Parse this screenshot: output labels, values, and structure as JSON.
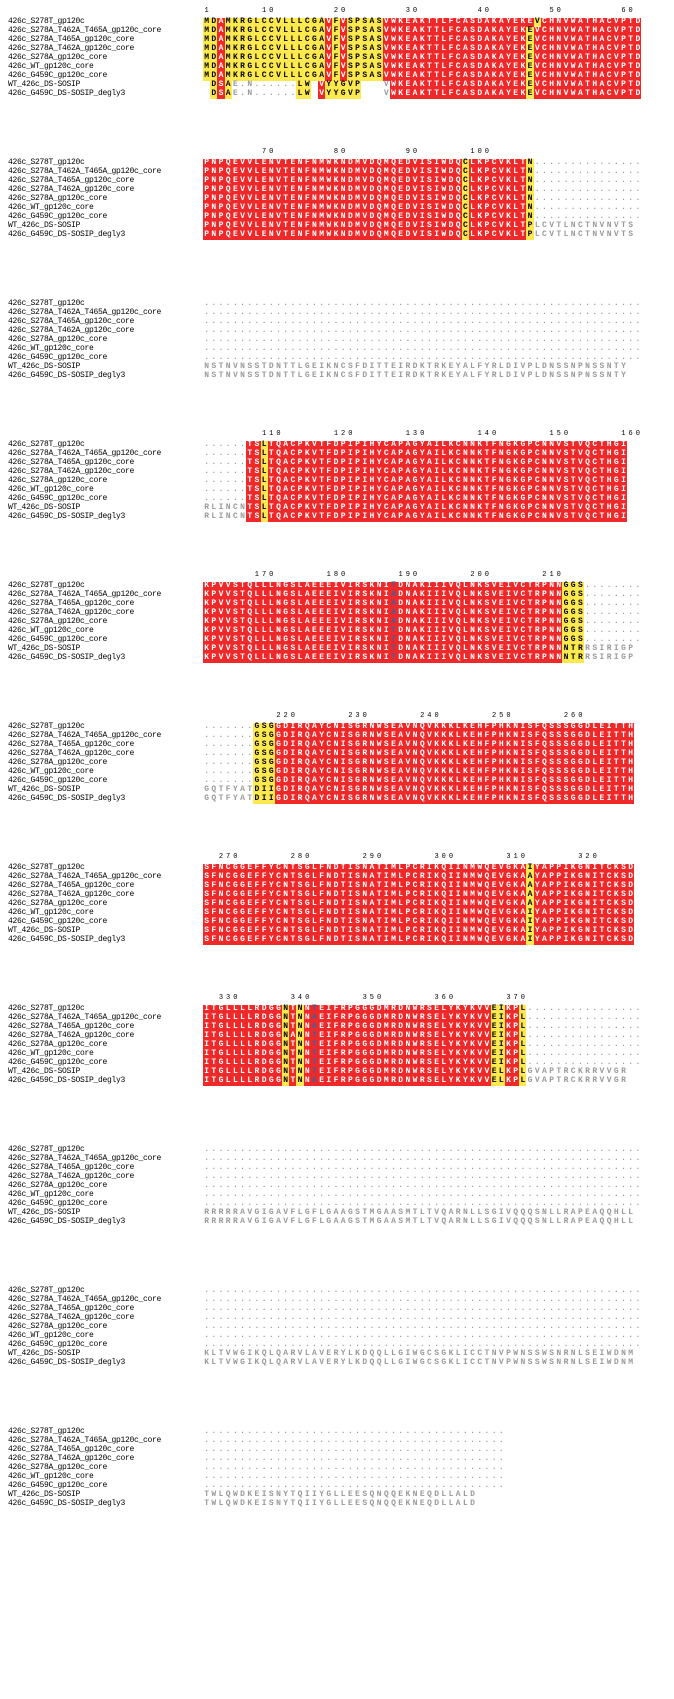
{
  "labels": [
    "426c_S278T_gp120c",
    "426c_S278A_T462A_T465A_gp120c_core",
    "426c_S278A_T465A_gp120c_core",
    "426c_S278A_T462A_gp120c_core",
    "426c_S278A_gp120c_core",
    "426c_WT_gp120c_core",
    "426c_G459C_gp120c_core",
    "WT_426c_DS-SOSIP",
    "426c_G459C_DS-SOSIP_degly3"
  ],
  "blocks": [
    {
      "ruler": [
        1,
        10,
        20,
        30,
        40,
        50,
        60
      ],
      "seqs": [
        "MDAMKRGLCCVLLLCGAVFVSPSASVWKEAKTTLFCASDAKAYEKEVCHNVWATHACVPTD",
        "MDAMKRGLCCVLLLCGAVFVSPSASVWKEAKTTLFCASDAKAYEKEVCHNVWATHACVPTD",
        "MDAMKRGLCCVLLLCGAVFVSPSASVWKEAKTTLFCASDAKAYEKEVCHNVWATHACVPTD",
        "MDAMKRGLCCVLLLCGAVFVSPSASVWKEAKTTLFCASDAKAYEKEVCHNVWATHACVPTD",
        "MDAMKRGLCCVLLLCGAVFVSPSASVWKEAKTTLFCASDAKAYEKEVCHNVWATHACVPTD",
        "MDAMKRGLCCVLLLCGAVFVSPSASVWKEAKTTLFCASDAKAYEKEVCHNVWATHACVPTD",
        "MDAMKRGLCCVLLLCGAVFVSPSASVWKEAKTTLFCASDAKAYEKEVCHNVWATHACVPTD",
        "-DSAE.N......LW-VYYGVP---VWKEAKTTLFCASDAKAYEKEVCHNVWATHACVPTD",
        "-DSAE.N......LW-VYYGVP---VWKEAKTTLFCASDAKAYEKEVCHNVWATHACVPTD"
      ],
      "style": [
        "yyryyyyyyyyyyyyyyryryyyyyrrrrrrrrrrrrrrrrrrrrryrrrrrrrrrrrrrr",
        "yyryyyyyyyyyyyyyyryryyyyyrrrrrrrrrrrrrrrrrrrryrrrrrrrrrrrrrrr",
        "yyryyyyyyyyyyyyyyryryyyyyrrrrrrrrrrrrrrrrrrrryrrrrrrrrrrrrrrr",
        "yyryyyyyyyyyyyyyyryryyyyyrrrrrrrrrrrrrrrrrrrryrrrrrrrrrrrrrrr",
        "yyryyyyyyyyyyyyyyryryyyyyrrrrrrrrrrrrrrrrrrrryrrrrrrrrrrrrrrr",
        "yyryyyyyyyyyyyyyyryryyyyyrrrrrrrrrrrrrrrrrrrryrrrrrrrrrrrrrrr",
        "yyryyyyyyyyyyyyyyryryyyyyrrrrrrrrrrrrrrrrrrrryrrrrrrrrrrrrrrr",
        "gyrydddddddddyydryyyyyddddrrrrrrrrrrrrrrrrrrryrrrrrrrrrrrrrrr",
        "gyrydddddddddyydryyyyyddddrrrrrrrrrrrrrrrrrrryrrrrrrrrrrrrrrr"
      ]
    },
    {
      "ruler": [
        70,
        80,
        90,
        100
      ],
      "rulerPos": [
        9,
        19,
        29,
        39
      ],
      "seqs": [
        "PNPQEVVLENVTENFNMWKNDMVDQMQEDVISIWDQCLKPCVKLTN...............",
        "PNPQEVVLENVTENFNMWKNDMVDQMQEDVISIWDQCLKPCVKLTN...............",
        "PNPQEVVLENVTENFNMWKNDMVDQMQEDVISIWDQCLKPCVKLTN...............",
        "PNPQEVVLENVTENFNMWKNDMVDQMQEDVISIWDQCLKPCVKLTN...............",
        "PNPQEVVLENVTENFNMWKNDMVDQMQEDVISIWDQCLKPCVKLTN...............",
        "PNPQEVVLENVTENFNMWKNDMVDQMQEDVISIWDQCLKPCVKLTN...............",
        "PNPQEVVLENVTENFNMWKNDMVDQMQEDVISIWDQCLKPCVKLTN...............",
        "PNPQEVVLENVTENFNMWKNDMVDQMQEDVISIWDQCLKPCVKLTPLCVTLNCTNVNVTS-",
        "PNPQEVVLENVTENFNMWKNDMVDQMQEDVISIWDQCLKPCVKLTPLCVTLNCTNVNVTS-"
      ],
      "style": [
        "rrrrrrrrrrrrrrrrrrrrrrrrrrrrrrrrrrrryrrrrrrrryddddddddddddddd",
        "rrrrrrrrrrrrrrrrrrrrrrrrrrrrrrrrrrrryrrrrrrrryddddddddddddddd",
        "rrrrrrrrrrrrrrrrrrrrrrrrrrrrrrrrrrrryrrrrrrrryddddddddddddddd",
        "rrrrrrrrrrrrrrrrrrrrrrrrrrrrrrrrrrrryrrrrrrrryddddddddddddddd",
        "rrrrrrrrrrrrrrrrrrrrrrrrrrrrrrrrrrrryrrrrrrrryddddddddddddddd",
        "rrrrrrrrrrrrrrrrrrrrrrrrrrrrrrrrrrrryrrrrrrrryddddddddddddddd",
        "rrrrrrrrrrrrrrrrrrrrrrrrrrrrrrrrrrrryrrrrrrrryddddddddddddddd",
        "rrrrrrrrrrrrrrrrrrrrrrrrrrrrrrrrrrrryrrrrrrrrywwwwwwwwwwwwwwd",
        "rrrrrrrrrrrrrrrrrrrrrrrrrrrrrrrrrrrryrrrrrrrrywwwwwwwwwwwwwwd"
      ]
    },
    {
      "ruler": [],
      "seqs": [
        ".............................................................",
        ".............................................................",
        ".............................................................",
        ".............................................................",
        ".............................................................",
        ".............................................................",
        ".............................................................",
        "NSTNVNSSTDNTTLGEIKNCSFDITTEIRDKTRKEYALFYRLDIVPLDNSSNPNSSNTY--",
        "NSTNVNSSTDNTTLGEIKNCSFDITTEIRDKTRKEYALFYRLDIVPLDNSSNPNSSNTY--"
      ],
      "style": [
        "ddddddddddddddddddddddddddddddddddddddddddddddddddddddddddddd",
        "ddddddddddddddddddddddddddddddddddddddddddddddddddddddddddddd",
        "ddddddddddddddddddddddddddddddddddddddddddddddddddddddddddddd",
        "ddddddddddddddddddddddddddddddddddddddddddddddddddddddddddddd",
        "ddddddddddddddddddddddddddddddddddddddddddddddddddddddddddddd",
        "ddddddddddddddddddddddddddddddddddddddddddddddddddddddddddddd",
        "ddddddddddddddddddddddddddddddddddddddddddddddddddddddddddddd",
        "wwwwwwwwwwwwwwwwwwwwwwwwwwwwwwwwwwwwwwwwwwwwwwwwwwwwwwwwwwwdd",
        "wwwwwwwwwwwwwwwwwwwwwwwwwwwwwwwwwwwwwwwwwwwwwwwwwwwwwwwwwwwdd"
      ]
    },
    {
      "ruler": [
        110,
        120,
        130,
        140,
        150,
        160
      ],
      "rulerPos": [
        10,
        20,
        30,
        40,
        50,
        60
      ],
      "seqs": [
        "......TSLTQACPKVTFDPIPIHYCAPAGYAILKCNNKTFNGKGPCNNVSTVQCTHGI--",
        "......TSLTQACPKVTFDPIPIHYCAPAGYAILKCNNKTFNGKGPCNNVSTVQCTHGI--",
        "......TSLTQACPKVTFDPIPIHYCAPAGYAILKCNNKTFNGKGPCNNVSTVQCTHGI--",
        "......TSLTQACPKVTFDPIPIHYCAPAGYAILKCNNKTFNGKGPCNNVSTVQCTHGI--",
        "......TSLTQACPKVTFDPIPIHYCAPAGYAILKCNNKTFNGKGPCNNVSTVQCTHGI--",
        "......TSLTQACPKVTFDPIPIHYCAPAGYAILKCNNKTFNGKGPCNNVSTVQCTHGI--",
        "......TSLTQACPKVTFDPIPIHYCAPAGYAILKCNNKTFNGKGPCNNVSTVQCTHGI--",
        "RLINCNTSLTQACPKVTFDPIPIHYCAPAGYAILKCNNKTFNGKGPCNNVSTVQCTHGI--",
        "RLINCNTSLTQACPKVTFDPIPIHYCAPAGYAILKCNNKTFNGKGPCNNVSTVQCTHGI--"
      ],
      "style": [
        "ddddddrryrrrrrrrrrrrrrrrrrrrrrrrrrrrrrrrrrrrrrrrrrrrrrrrrrrdd",
        "ddddddrryrrrrrrrrrrrrrrrrrrrrrrrrrrrrrrrrrrrrrrrrrrrrrrrrrrdd",
        "ddddddrryrrrrrrrrrrrrrrrrrrrrrrrrrrrrrrrrrrrrrrrrrrrrrrrrrrdd",
        "ddddddrryrrrrrrrrrrrrrrrrrrrrrrrrrrrrrrrrrrrrrrrrrrrrrrrrrrdd",
        "ddddddrryrrrrrrrrrrrrrrrrrrrrrrrrrrrrrrrrrrrrrrrrrrrrrrrrrrdd",
        "ddddddrryrrrrrrrrrrrrrrrrrrrrrrrrrrrrrrrrrrrrrrrrrrrrrrrrrrdd",
        "ddddddrryrrrrrrrrrrrrrrrrrrrrrrrrrrrrrrrrrrrrrrrrrrrrrrrrrrdd",
        "wwwwwwrryrrrrrrrrrrrrrrrrrrrrrrrrrrrrrrrrrrrrrrrrrrrrrrrrrrdd",
        "wwwwwwrryrrrrrrrrrrrrrrrrrrrrrrrrrrrrrrrrrrrrrrrrrrrrrrrrrrdd"
      ]
    },
    {
      "ruler": [
        170,
        180,
        190,
        200,
        210
      ],
      "rulerPos": [
        9,
        19,
        29,
        39,
        49
      ],
      "seqs": [
        "KPVVSTQLLLNGSLAEEEIVIRSKNITDNAKIIIVQLNKSVEIVCTRPNNGGS........",
        "KPVVSTQLLLNGSLAEEEIVIRSKNIADNAKIIIVQLNKSVEIVCTRPNNGGS........",
        "KPVVSTQLLLNGSLAEEEIVIRSKNIADNAKIIIVQLNKSVEIVCTRPNNGGS........",
        "KPVVSTQLLLNGSLAEEEIVIRSKNIADNAKIIIVQLNKSVEIVCTRPNNGGS........",
        "KPVVSTQLLLNGSLAEEEIVIRSKNIADNAKIIIVQLNKSVEIVCTRPNNGGS........",
        "KPVVSTQLLLNGSLAEEEIVIRSKNITDNAKIIIVQLNKSVEIVCTRPNNGGS........",
        "KPVVSTQLLLNGSLAEEEIVIRSKNITDNAKIIIVQLNKSVEIVCTRPNNGGS........",
        "KPVVSTQLLLNGSLAEEEIVIRSKNITDNAKIIIVQLNKSVEIVCTRPNNNTRRSIRIGP-",
        "KPVVSTQLLLNGSLAEEEIVIRSKNITDNAKIIIVQLNKSVEIVCTRPNNNTRRSIRIGP-"
      ],
      "style": [
        "rrrrrrrrrrrrrrrrrrrrrrrrrrbrrrrrrrrrrrrrrrrrrrrrrryyydddddddd",
        "rrrrrrrrrrrrrrrrrrrrrrrrrrbrrrrrrrrrrrrrrrrrrrrrrryyydddddddd",
        "rrrrrrrrrrrrrrrrrrrrrrrrrrbrrrrrrrrrrrrrrrrrrrrrrryyydddddddd",
        "rrrrrrrrrrrrrrrrrrrrrrrrrrbrrrrrrrrrrrrrrrrrrrrrrryyydddddddd",
        "rrrrrrrrrrrrrrrrrrrrrrrrrrbrrrrrrrrrrrrrrrrrrrrrrryyydddddddd",
        "rrrrrrrrrrrrrrrrrrrrrrrrrrbrrrrrrrrrrrrrrrrrrrrrrryyydddddddd",
        "rrrrrrrrrrrrrrrrrrrrrrrrrrbrrrrrrrrrrrrrrrrrrrrrrryyydddddddd",
        "rrrrrrrrrrrrrrrrrrrrrrrrrrbrrrrrrrrrrrrrrrrrrrrrrryyywwwwwwwd",
        "rrrrrrrrrrrrrrrrrrrrrrrrrrbrrrrrrrrrrrrrrrrrrrrrrryyywwwwwwwd"
      ],
      "blue": [
        [
          26,
          "r"
        ]
      ]
    },
    {
      "ruler": [
        220,
        230,
        240,
        250,
        260
      ],
      "rulerPos": [
        12,
        22,
        32,
        42,
        52
      ],
      "seqs": [
        ".......GSGGDIRQAYCNISGRNWSEAVNQVKKKLKEHFPHKNISFQSSSGGDLEITTH-",
        ".......GSGGDIRQAYCNISGRNWSEAVNQVKKKLKEHFPHKNISFQSSSGGDLEITTH-",
        ".......GSGGDIRQAYCNISGRNWSEAVNQVKKKLKEHFPHKNISFQSSSGGDLEITTH-",
        ".......GSGGDIRQAYCNISGRNWSEAVNQVKKKLKEHFPHKNISFQSSSGGDLEITTH-",
        ".......GSGGDIRQAYCNISGRNWSEAVNQVKKKLKEHFPHKNISFQSSSGGDLEITTH-",
        ".......GSGGDIRQAYCNISGRNWSEAVNQVKKKLKEHFPHKNISFQSSSGGDLEITTH-",
        ".......GSGGDIRQAYCNISGRNWSEAVNQVKKKLKEHFPHKNISFQSSSGGDLEITTH-",
        "GQTFYATDIIGDIRQAYCNISGRNWSEAVNQVKKKLKEHFPHKNISFQSSSGGDLEITTH-",
        "GQTFYATDIIGDIRQAYCNISGRNWSEAVNQVKKKLKEHFPHKNISFQSSSGGDLEITTH-"
      ],
      "style": [
        "dddddddyyyrrrrrrrrrrrrrrrrrrrrrrrrrrrrrrrrrrrrrrrrrrrrrrrrrrd",
        "dddddddyyyrrrrrrrrrrrrrrrrrrrrrrrrrrrrrrrrrrrrrrrrrrrrrrrrrrd",
        "dddddddyyyrrrrrrrrrrrrrrrrrrrrrrrrrrrrrrrrrrrrrrrrrrrrrrrrrrd",
        "dddddddyyyrrrrrrrrrrrrrrrrrrrrrrrrrrrrrrrrrrrrrrrrrrrrrrrrrrd",
        "dddddddyyyrrrrrrrrrrrrrrrrrrrrrrrrrrrrrrrrrrrrrrrrrrrrrrrrrrd",
        "dddddddyyyrrrrrrrrrrrrrrrrrrrrrrrrrrrrrrrrrrrrrrrrrrrrrrrrrrd",
        "dddddddyyyrrrrrrrrrrrrrrrrrrrrrrrrrrrrrrrrrrrrrrrrrrrrrrrrrrd",
        "wwwwwwwyyyrrrrrrrrrrrrrrrrrrrrrrrrrrrrrrrrrrrrrrrrrrrrrrrrrrd",
        "wwwwwwwyyyrrrrrrrrrrrrrrrrrrrrrrrrrrrrrrrrrrrrrrrrrrrrrrrrrrd"
      ]
    },
    {
      "ruler": [
        270,
        280,
        290,
        300,
        310,
        320
      ],
      "rulerPos": [
        4,
        14,
        24,
        34,
        44,
        54
      ],
      "seqs": [
        "SFNCGGEFFYCNTSGLFNDTISNATIMLPCRIKQIINMWQEVGKAIYAPPIKGNITCKSD-",
        "SFNCGGEFFYCNTSGLFNDTISNATIMLPCRIKQIINMWQEVGKAAYAPPIKGNITCKSD-",
        "SFNCGGEFFYCNTSGLFNDTISNATIMLPCRIKQIINMWQEVGKAAYAPPIKGNITCKSD-",
        "SFNCGGEFFYCNTSGLFNDTISNATIMLPCRIKQIINMWQEVGKAAYAPPIKGNITCKSD-",
        "SFNCGGEFFYCNTSGLFNDTISNATIMLPCRIKQIINMWQEVGKAAYAPPIKGNITCKSD-",
        "SFNCGGEFFYCNTSGLFNDTISNATIMLPCRIKQIINMWQEVGKAIYAPPIKGNITCKSD-",
        "SFNCGGEFFYCNTSGLFNDTISNATIMLPCRIKQIINMWQEVGKAIYAPPIKGNITCKSD-",
        "SFNCGGEFFYCNTSGLFNDTISNATIMLPCRIKQIINMWQEVGKAIYAPPIKGNITCKSD-",
        "SFNCGGEFFYCNTSGLFNDTISNATIMLPCRIKQIINMWQEVGKAIYAPPIKGNITCKSD-"
      ],
      "style": [
        "rrrrrrrrrrrrrrrrrrrrrrrrrrrrrrrrrrrrrrrrrrrrryrrrrrrrrrrrrrrd",
        "rrrrrrrrrrrrrrrrrrrrrrrrrrrrrrrrrrrrrrrrrrrrryrrrrrrrrrrrrrrd",
        "rrrrrrrrrrrrrrrrrrrrrrrrrrrrrrrrrrrrrrrrrrrrryrrrrrrrrrrrrrrd",
        "rrrrrrrrrrrrrrrrrrrrrrrrrrrrrrrrrrrrrrrrrrrrryrrrrrrrrrrrrrrd",
        "rrrrrrrrrrrrrrrrrrrrrrrrrrrrrrrrrrrrrrrrrrrrryrrrrrrrrrrrrrrd",
        "rrrrrrrrrrrrrrrrrrrrrrrrrrrrrrrrrrrrrrrrrrrrryrrrrrrrrrrrrrrd",
        "rrrrrrrrrrrrrrrrrrrrrrrrrrrrrrrrrrrrrrrrrrrrryrrrrrrrrrrrrrrd",
        "rrrrrrrrrrrrrrrrrrrrrrrrrrrrrrrrrrrrrrrrrrrrryrrrrrrrrrrrrrrd",
        "rrrrrrrrrrrrrrrrrrrrrrrrrrrrrrrrrrrrrrrrrrrrryrrrrrrrrrrrrrrd"
      ]
    },
    {
      "ruler": [
        330,
        340,
        350,
        360,
        370
      ],
      "rulerPos": [
        4,
        14,
        24,
        34,
        44
      ],
      "seqs": [
        "ITGLLLLRDGGNTNNTEIFRPGGGDMRDNWRSELYKYKVVEIKPL................",
        "ITGLLLLRDGGNTNNAEIFRPGGGDMRDNWRSELYKYKVVEIKPL................",
        "ITGLLLLRDGGNTNNAEIFRPGGGDMRDNWRSELYKYKVVEIKPL................",
        "ITGLLLLRDGGNANNTEIFRPGGGDMRDNWRSELYKYKVVEIKPL................",
        "ITGLLLLRDGGNTNNTEIFRPGGGDMRDNWRSELYKYKVVEIKPL................",
        "ITGLLLLRDGGNTNNTEIFRPGGGDMRDNWRSELYKYKVVEIKPL................",
        "ITGLLLLRDGGNTNNTEIFRPGGGDMRDNWRSELYKYKVVEIKPL................",
        "ITGLLLLRDGGNTNNTEIFRPGGGDMRDNWRSELYKYKVVELKPLGVAPTRCKRRVVGR--",
        "ITGLLLLRDGGNTNNAEIFRPGGGDMRDNWRSELYKYKVVELKPLGVAPTRCKRRVVGR--"
      ],
      "style": [
        "rrrrrrrrrrryryrbrrrrrrrrrrrrrrrrrrrrrrrryyrrydddddddddddddddd",
        "rrrrrrrrrrryryrbrrrrrrrrrrrrrrrrrrrrrrrryyrrydddddddddddddddd",
        "rrrrrrrrrrryryrbrrrrrrrrrrrrrrrrrrrrrrrryyrrydddddddddddddddd",
        "rrrrrrrrrrryryrbrrrrrrrrrrrrrrrrrrrrrrrryyrrydddddddddddddddd",
        "rrrrrrrrrrryryrbrrrrrrrrrrrrrrrrrrrrrrrryyrrydddddddddddddddd",
        "rrrrrrrrrrryryrbrrrrrrrrrrrrrrrrrrrrrrrryyrrydddddddddddddddd",
        "rrrrrrrrrrryryrbrrrrrrrrrrrrrrrrrrrrrrrryyrrydddddddddddddddd",
        "rrrrrrrrrrryryrbrrrrrrrrrrrrrrrrrrrrrrrryyrrywwwwwwwwwwwwwwdd",
        "rrrrrrrrrrryryrbrrrrrrrrrrrrrrrrrrrrrrrryyrrywwwwwwwwwwwwwwdd"
      ],
      "blue": [
        [
          15,
          "r"
        ]
      ]
    },
    {
      "ruler": [],
      "seqs": [
        ".............................................................",
        ".............................................................",
        ".............................................................",
        ".............................................................",
        ".............................................................",
        ".............................................................",
        ".............................................................",
        "RRRRRAVGIGAVFLGFLGAAGSTMGAASMTLTVQARNLLSGIVQQQSNLLRAPEAQQHLL-",
        "RRRRRAVGIGAVFLGFLGAAGSTMGAASMTLTVQARNLLSGIVQQQSNLLRAPEAQQHLL-"
      ],
      "style": [
        "ddddddddddddddddddddddddddddddddddddddddddddddddddddddddddddd",
        "ddddddddddddddddddddddddddddddddddddddddddddddddddddddddddddd",
        "ddddddddddddddddddddddddddddddddddddddddddddddddddddddddddddd",
        "ddddddddddddddddddddddddddddddddddddddddddddddddddddddddddddd",
        "ddddddddddddddddddddddddddddddddddddddddddddddddddddddddddddd",
        "ddddddddddddddddddddddddddddddddddddddddddddddddddddddddddddd",
        "ddddddddddddddddddddddddddddddddddddddddddddddddddddddddddddd",
        "wwwwwwwwwwwwwwwwwwwwwwwwwwwwwwwwwwwwwwwwwwwwwwwwwwwwwwwwwwwwd",
        "wwwwwwwwwwwwwwwwwwwwwwwwwwwwwwwwwwwwwwwwwwwwwwwwwwwwwwwwwwwwd"
      ]
    },
    {
      "ruler": [],
      "seqs": [
        ".............................................................",
        ".............................................................",
        ".............................................................",
        ".............................................................",
        ".............................................................",
        ".............................................................",
        ".............................................................",
        "KLTVWGIKQLQARVLAVERYLKDQQLLGIWGCSGKLICCTNVPWNSSWSNRNLSEIWDNM-",
        "KLTVWGIKQLQARVLAVERYLKDQQLLGIWGCSGKLICCTNVPWNSSWSNRNLSEIWDNM-"
      ],
      "style": [
        "ddddddddddddddddddddddddddddddddddddddddddddddddddddddddddddd",
        "ddddddddddddddddddddddddddddddddddddddddddddddddddddddddddddd",
        "ddddddddddddddddddddddddddddddddddddddddddddddddddddddddddddd",
        "ddddddddddddddddddddddddddddddddddddddddddddddddddddddddddddd",
        "ddddddddddddddddddddddddddddddddddddddddddddddddddddddddddddd",
        "ddddddddddddddddddddddddddddddddddddddddddddddddddddddddddddd",
        "ddddddddddddddddddddddddddddddddddddddddddddddddddddddddddddd",
        "wwwwwwwwwwwwwwwwwwwwwwwwwwwwwwwwwwwwwwwwwwwwwwwwwwwwwwwwwwwwd",
        "wwwwwwwwwwwwwwwwwwwwwwwwwwwwwwwwwwwwwwwwwwwwwwwwwwwwwwwwwwwwd"
      ]
    },
    {
      "ruler": [],
      "seqs": [
        "..........................................",
        "..........................................",
        "..........................................",
        "..........................................",
        "..........................................",
        "..........................................",
        "..........................................",
        "TWLQWDKEISNYTQIIYGLLEESQNQQEKNEQDLLALD----",
        "TWLQWDKEISNYTQIIYGLLEESQNQQEKNEQDLLALD----"
      ],
      "style": [
        "dddddddddddddddddddddddddddddddddddddddddd",
        "dddddddddddddddddddddddddddddddddddddddddd",
        "dddddddddddddddddddddddddddddddddddddddddd",
        "dddddddddddddddddddddddddddddddddddddddddd",
        "dddddddddddddddddddddddddddddddddddddddddd",
        "dddddddddddddddddddddddddddddddddddddddddd",
        "dddddddddddddddddddddddddddddddddddddddddd",
        "wwwwwwwwwwwwwwwwwwwwwwwwwwwwwwwwwwwwwwdddd",
        "wwwwwwwwwwwwwwwwwwwwwwwwwwwwwwwwwwwwwwdddd"
      ]
    }
  ]
}
